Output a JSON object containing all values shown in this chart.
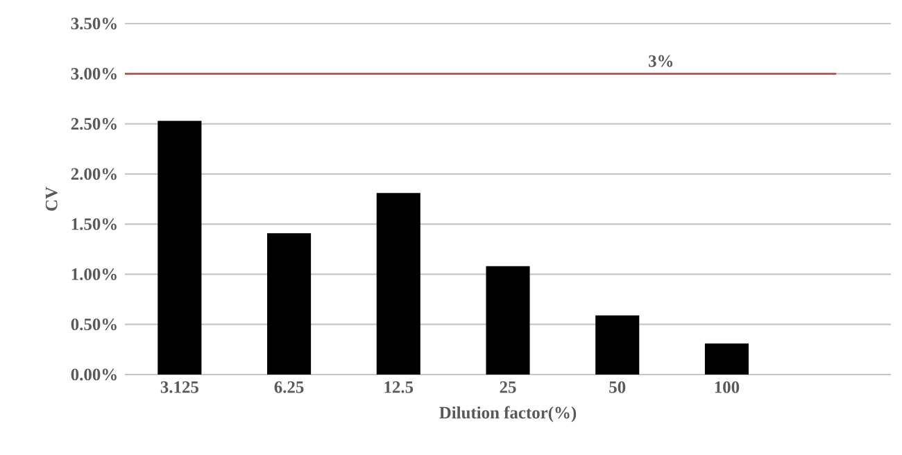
{
  "chart_data": {
    "type": "bar",
    "xlabel": "Dilution factor(%)",
    "ylabel": "CV",
    "categories": [
      "3.125",
      "6.25",
      "12.5",
      "25",
      "50",
      "100"
    ],
    "values": [
      2.53,
      1.41,
      1.81,
      1.08,
      0.59,
      0.31
    ],
    "color": "#000000",
    "ylim": [
      0,
      3.5
    ],
    "yticks": [
      {
        "value": 0,
        "label": "0.00%"
      },
      {
        "value": 0.5,
        "label": "0.50%"
      },
      {
        "value": 1,
        "label": "1.00%"
      },
      {
        "value": 1.5,
        "label": "1.50%"
      },
      {
        "value": 2,
        "label": "2.00%"
      },
      {
        "value": 2.5,
        "label": "2.50%"
      },
      {
        "value": 3,
        "label": "3.00%"
      },
      {
        "value": 3.5,
        "label": "3.50%"
      }
    ],
    "grid": "y",
    "ref_lines": [
      {
        "axis": "y",
        "value": 3,
        "label": "3%",
        "color": "#c0504d"
      }
    ]
  }
}
